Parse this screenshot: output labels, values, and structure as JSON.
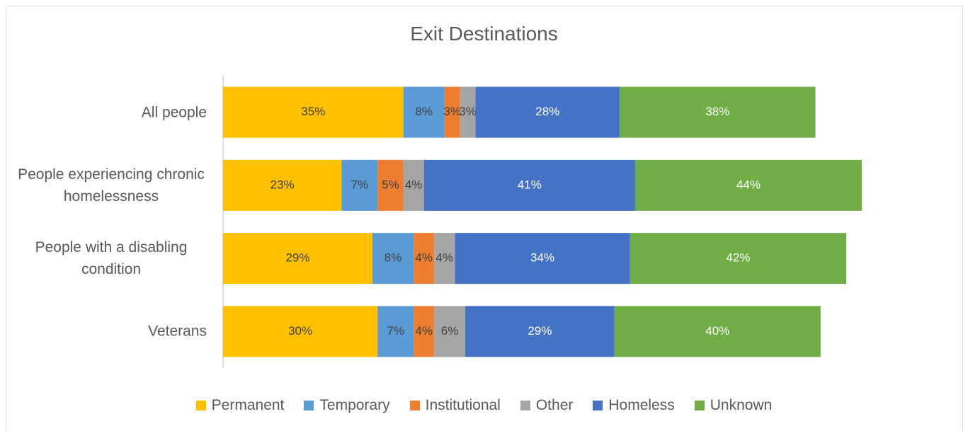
{
  "chart_data": {
    "type": "stacked_barh",
    "title": "Exit Destinations",
    "categories": [
      "All people",
      "People experiencing chronic homelessness",
      "People with a disabling condition",
      "Veterans"
    ],
    "series": [
      {
        "name": "Permanent",
        "color": "#FFC000",
        "label_color": "#404040",
        "values": [
          35,
          23,
          29,
          30
        ],
        "value_labels": [
          "35%",
          "23%",
          "29%",
          "30%"
        ]
      },
      {
        "name": "Temporary",
        "color": "#5B9BD5",
        "label_color": "#404040",
        "values": [
          8,
          7,
          8,
          7
        ],
        "value_labels": [
          "8%",
          "7%",
          "8%",
          "7%"
        ]
      },
      {
        "name": "Institutional",
        "color": "#ED7D31",
        "label_color": "#404040",
        "values": [
          3,
          5,
          4,
          4
        ],
        "value_labels": [
          "3%",
          "5%",
          "4%",
          "4%"
        ]
      },
      {
        "name": "Other",
        "color": "#A5A5A5",
        "label_color": "#404040",
        "values": [
          3,
          4,
          4,
          6
        ],
        "value_labels": [
          "3%",
          "4%",
          "4%",
          "6%"
        ]
      },
      {
        "name": "Homeless",
        "color": "#4472C4",
        "label_color": "#ffffff",
        "values": [
          28,
          41,
          34,
          29
        ],
        "value_labels": [
          "28%",
          "41%",
          "34%",
          "29%"
        ]
      },
      {
        "name": "Unknown",
        "color": "#70AD47",
        "label_color": "#ffffff",
        "values": [
          38,
          44,
          42,
          40
        ],
        "value_labels": [
          "38%",
          "44%",
          "42%",
          "40%"
        ]
      }
    ],
    "legend": "bottom"
  }
}
